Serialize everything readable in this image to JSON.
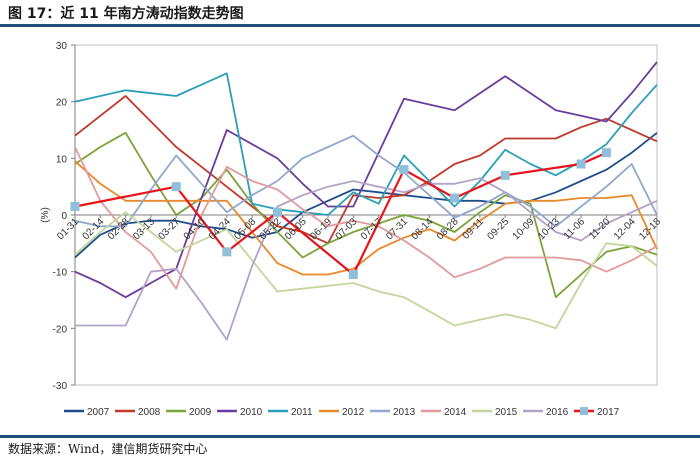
{
  "header": {
    "title": "图 17：近 11 年南方涛动指数走势图"
  },
  "footer": {
    "source": "数据来源：Wind，建信期货研究中心"
  },
  "chart_data": {
    "type": "line",
    "title": "",
    "xlabel": "",
    "ylabel": "(%)",
    "ylim": [
      -30,
      30
    ],
    "yticks": [
      -30,
      -20,
      -10,
      0,
      10,
      20,
      30
    ],
    "categories": [
      "01-31",
      "02-14",
      "02-28",
      "03-13",
      "03-27",
      "04-10",
      "04-24",
      "05-08",
      "05-22",
      "06-05",
      "06-19",
      "07-03",
      "07-17",
      "07-31",
      "08-14",
      "08-28",
      "09-11",
      "09-25",
      "10-09",
      "10-23",
      "11-06",
      "11-20",
      "12-04",
      "12-18"
    ],
    "colors": {
      "2007": "#1f4e8c",
      "2008": "#c0392b",
      "2009": "#7aa33a",
      "2010": "#6a3d9a",
      "2011": "#2aa0b8",
      "2012": "#e8892b",
      "2013": "#8fa8cc",
      "2014": "#e39a9a",
      "2015": "#c3d69b",
      "2016": "#b3a2c7",
      "2017": "#e8141c"
    },
    "series": [
      {
        "name": "2007",
        "values": [
          -7.5,
          -3.5,
          -1.5,
          -1.0,
          -1.0,
          -2.0,
          -2.5,
          -4.0,
          -3.0,
          0.5,
          2.5,
          4.5,
          4.0,
          3.5,
          3.0,
          2.5,
          2.5,
          2.0,
          2.5,
          4.0,
          6.0,
          8.0,
          11.0,
          14.5
        ]
      },
      {
        "name": "2008",
        "values": [
          14.0,
          17.5,
          21.0,
          16.5,
          12.0,
          8.5,
          5.0,
          1.5,
          -2.0,
          -3.0,
          -5.0,
          3.5,
          3.0,
          3.5,
          6.0,
          9.0,
          10.5,
          13.5,
          13.5,
          13.5,
          15.5,
          17.0,
          15.0,
          13.0
        ]
      },
      {
        "name": "2009",
        "values": [
          9.0,
          12.0,
          14.5,
          7.0,
          0.0,
          3.0,
          8.0,
          2.0,
          -3.0,
          -7.5,
          -5.0,
          -3.0,
          -1.5,
          0.0,
          -1.0,
          -3.0,
          0.5,
          3.5,
          2.0,
          -14.5,
          -10.5,
          -6.5,
          -5.5,
          -7.0
        ]
      },
      {
        "name": "2010",
        "values": [
          -10.0,
          -12.0,
          -14.5,
          -12.0,
          -9.5,
          3.0,
          15.0,
          12.5,
          10.0,
          5.5,
          1.5,
          1.5,
          11.0,
          20.5,
          19.5,
          18.5,
          21.5,
          24.5,
          21.5,
          18.5,
          17.5,
          16.5,
          21.5,
          27.0
        ]
      },
      {
        "name": "2011",
        "values": [
          20.0,
          21.0,
          22.0,
          21.5,
          21.0,
          23.0,
          25.0,
          2.0,
          1.0,
          0.5,
          0.0,
          4.0,
          2.0,
          10.5,
          6.0,
          1.5,
          6.0,
          11.5,
          9.0,
          7.0,
          9.5,
          12.5,
          18.0,
          23.0
        ]
      },
      {
        "name": "2012",
        "values": [
          9.5,
          5.5,
          2.5,
          2.5,
          2.5,
          2.5,
          2.5,
          -3.0,
          -8.5,
          -10.5,
          -10.5,
          -9.5,
          -6.0,
          -4.0,
          -2.5,
          -4.5,
          -1.0,
          2.0,
          2.5,
          2.5,
          3.0,
          3.0,
          3.5,
          -6.0
        ]
      },
      {
        "name": "2013",
        "values": [
          -1.0,
          -2.0,
          -2.0,
          4.5,
          10.5,
          5.5,
          0.5,
          3.5,
          6.0,
          10.0,
          12.0,
          14.0,
          10.5,
          7.5,
          3.5,
          -0.5,
          1.5,
          4.0,
          1.5,
          -2.0,
          1.5,
          5.0,
          9.0,
          0.0
        ]
      },
      {
        "name": "2014",
        "values": [
          12.0,
          2.5,
          -3.0,
          -6.5,
          -13.0,
          0.0,
          8.5,
          6.0,
          4.5,
          1.0,
          -2.0,
          -1.0,
          -2.0,
          -4.5,
          -7.5,
          -11.0,
          -9.5,
          -7.5,
          -7.5,
          -7.5,
          -8.0,
          -10.0,
          -8.0,
          -5.5
        ]
      },
      {
        "name": "2015",
        "values": [
          -7.0,
          -3.0,
          0.5,
          -3.0,
          -6.5,
          -4.5,
          -2.5,
          -8.0,
          -13.5,
          -13.0,
          -12.5,
          -12.0,
          -13.5,
          -14.5,
          -17.0,
          -19.5,
          -18.5,
          -17.5,
          -18.5,
          -20.0,
          -12.0,
          -5.0,
          -5.5,
          -9.0
        ]
      },
      {
        "name": "2016",
        "values": [
          -19.5,
          -19.5,
          -19.5,
          -10.0,
          -9.5,
          -15.5,
          -22.0,
          -9.0,
          1.5,
          3.5,
          5.0,
          6.0,
          5.0,
          4.0,
          5.5,
          5.5,
          6.5,
          4.0,
          0.5,
          -3.0,
          -4.5,
          -1.5,
          0.5,
          2.5
        ]
      },
      {
        "name": "2017",
        "values": [
          1.5,
          null,
          null,
          null,
          5.0,
          null,
          -6.5,
          null,
          0.5,
          null,
          null,
          -10.5,
          null,
          8.0,
          null,
          3.0,
          null,
          7.0,
          null,
          null,
          9.0,
          11.0,
          null,
          null
        ]
      }
    ],
    "legend_position": "bottom"
  }
}
